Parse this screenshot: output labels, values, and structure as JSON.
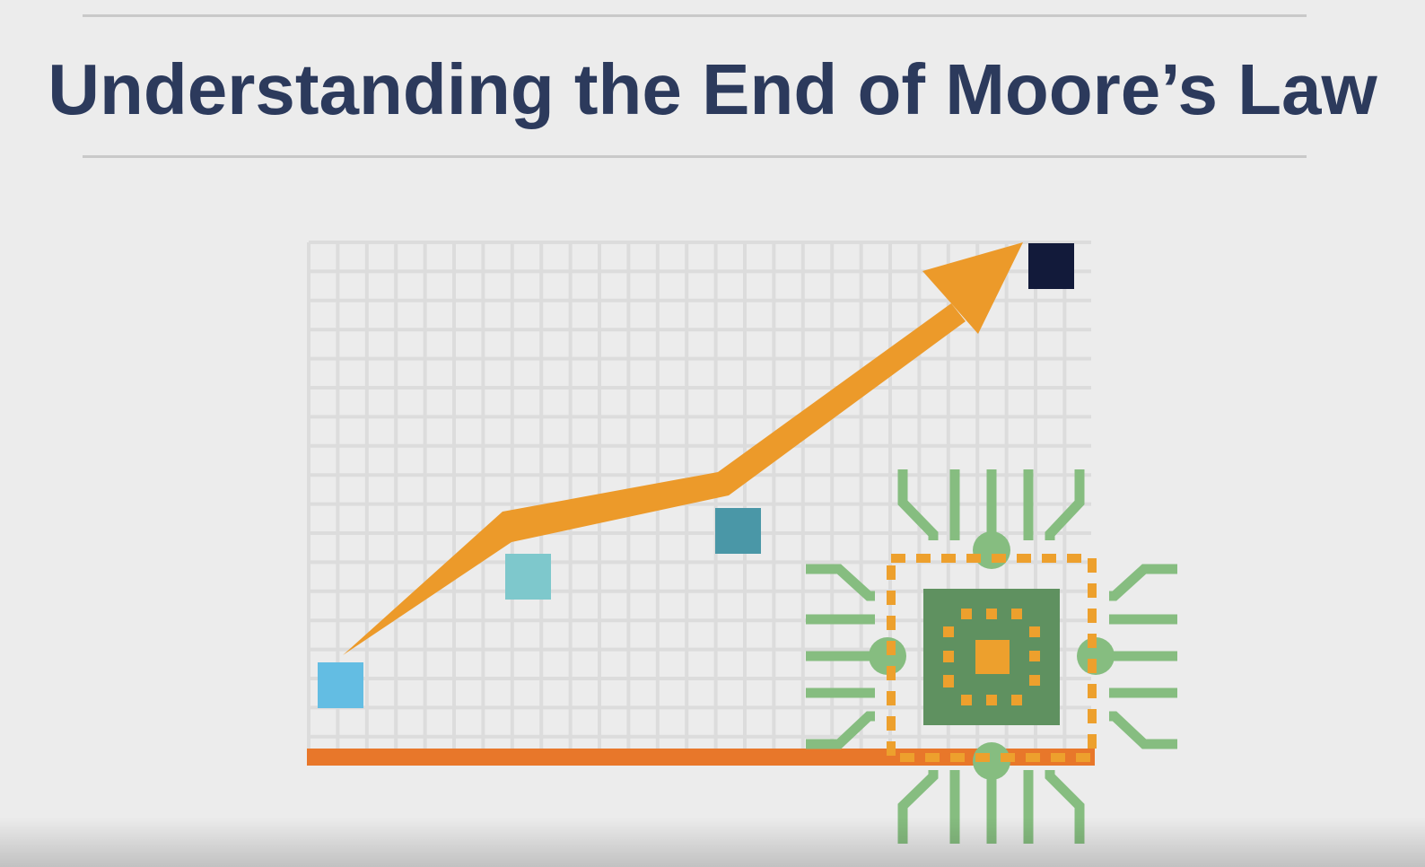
{
  "slide": {
    "title": "Understanding the End of Moore’s Law"
  },
  "illustration": {
    "icons": [
      "chart-grid-icon",
      "trend-arrow-icon",
      "microchip-icon"
    ],
    "colors": {
      "title": "#2c3a5c",
      "arrow": "#ec9a2a",
      "baseline": "#e8772a",
      "grid": "#dcdcdc",
      "square_1": "#63bde3",
      "square_2": "#7ec8cc",
      "square_3": "#4a97a7",
      "square_4": "#121a3a",
      "chip_body": "#5f9160",
      "chip_pins": "#86bd80",
      "chip_frame": "#eda02d"
    }
  }
}
